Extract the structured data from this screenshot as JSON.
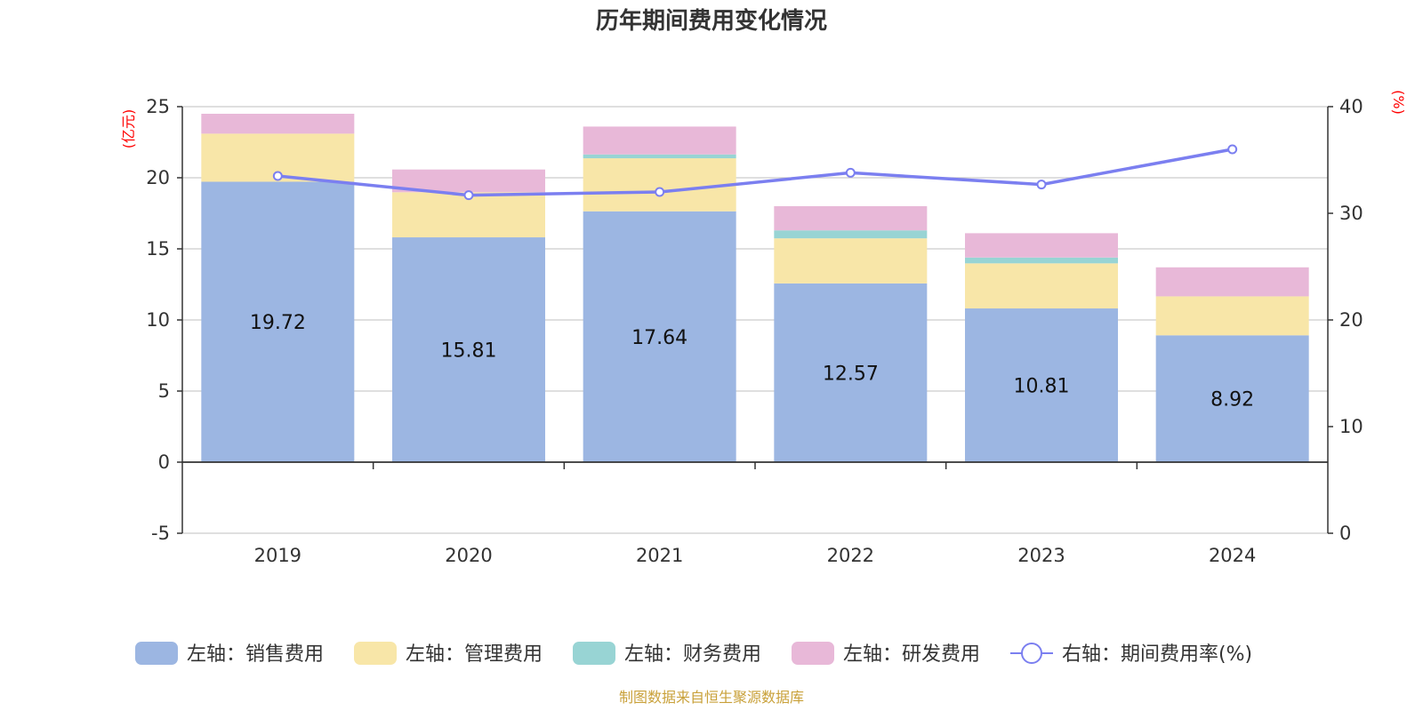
{
  "chart_data": {
    "type": "bar",
    "stacked": true,
    "title": "历年期间费用变化情况",
    "categories": [
      "2019",
      "2020",
      "2021",
      "2022",
      "2023",
      "2024"
    ],
    "left_axis": {
      "unit": "(亿元)",
      "ylim": [
        -5,
        25
      ],
      "ticks": [
        "-5",
        "0",
        "5",
        "10",
        "15",
        "20",
        "25"
      ]
    },
    "right_axis": {
      "unit": "(%)",
      "ylim": [
        0,
        40
      ],
      "ticks": [
        "0",
        "10",
        "20",
        "30",
        "40"
      ]
    },
    "series": [
      {
        "name": "左轴：销售费用",
        "axis": "left",
        "kind": "bar",
        "color": "#9cb6e2",
        "values": [
          19.72,
          15.81,
          17.64,
          12.57,
          10.81,
          8.92
        ],
        "labels": [
          "19.72",
          "15.81",
          "17.64",
          "12.57",
          "10.81",
          "8.92"
        ]
      },
      {
        "name": "左轴：管理费用",
        "axis": "left",
        "kind": "bar",
        "color": "#f8e6a8",
        "values": [
          3.38,
          3.17,
          3.73,
          3.17,
          3.17,
          2.74
        ]
      },
      {
        "name": "左轴：财务费用",
        "axis": "left",
        "kind": "bar",
        "color": "#98d4d4",
        "values": [
          0.0,
          0.0,
          0.27,
          0.56,
          0.41,
          0.0
        ]
      },
      {
        "name": "左轴：研发费用",
        "axis": "left",
        "kind": "bar",
        "color": "#e8b8d8",
        "values": [
          1.4,
          1.6,
          1.96,
          1.7,
          1.71,
          2.04
        ]
      },
      {
        "name": "右轴：期间费用率(%)",
        "axis": "right",
        "kind": "line",
        "color": "#7b7ff0",
        "values": [
          33.5,
          31.7,
          32.0,
          33.8,
          32.7,
          36.0
        ]
      }
    ],
    "legend_position": "bottom",
    "grid": true
  },
  "source_note": "制图数据来自恒生聚源数据库"
}
